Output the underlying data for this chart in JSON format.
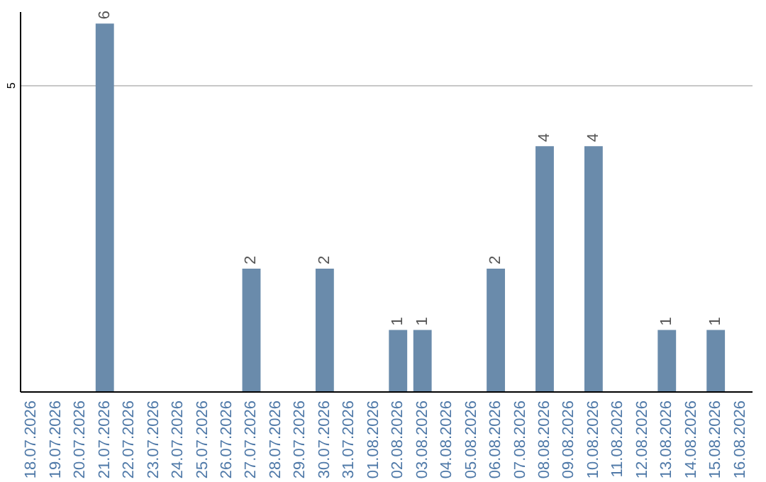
{
  "chart_data": {
    "type": "bar",
    "categories": [
      "18.07.2026",
      "19.07.2026",
      "20.07.2026",
      "21.07.2026",
      "22.07.2026",
      "23.07.2026",
      "24.07.2026",
      "25.07.2026",
      "26.07.2026",
      "27.07.2026",
      "28.07.2026",
      "29.07.2026",
      "30.07.2026",
      "31.07.2026",
      "01.08.2026",
      "02.08.2026",
      "03.08.2026",
      "04.08.2026",
      "05.08.2026",
      "06.08.2026",
      "07.08.2026",
      "08.08.2026",
      "09.08.2026",
      "10.08.2026",
      "11.08.2026",
      "12.08.2026",
      "13.08.2026",
      "14.08.2026",
      "15.08.2026",
      "16.08.2026"
    ],
    "values": [
      null,
      null,
      null,
      6,
      null,
      null,
      null,
      null,
      null,
      2,
      null,
      null,
      2,
      null,
      null,
      1,
      1,
      null,
      null,
      2,
      null,
      4,
      null,
      4,
      null,
      null,
      1,
      null,
      1,
      null
    ],
    "value_labels": [
      null,
      null,
      null,
      "6",
      null,
      null,
      null,
      null,
      null,
      "2",
      null,
      null,
      "2",
      null,
      null,
      "1",
      "1",
      null,
      null,
      "2",
      null,
      "4",
      null,
      "4",
      null,
      null,
      "1",
      null,
      "1",
      null
    ],
    "color": "#6a8bab",
    "ylim": [
      0,
      6.2
    ],
    "yticks": [
      5
    ],
    "grid": "y"
  }
}
